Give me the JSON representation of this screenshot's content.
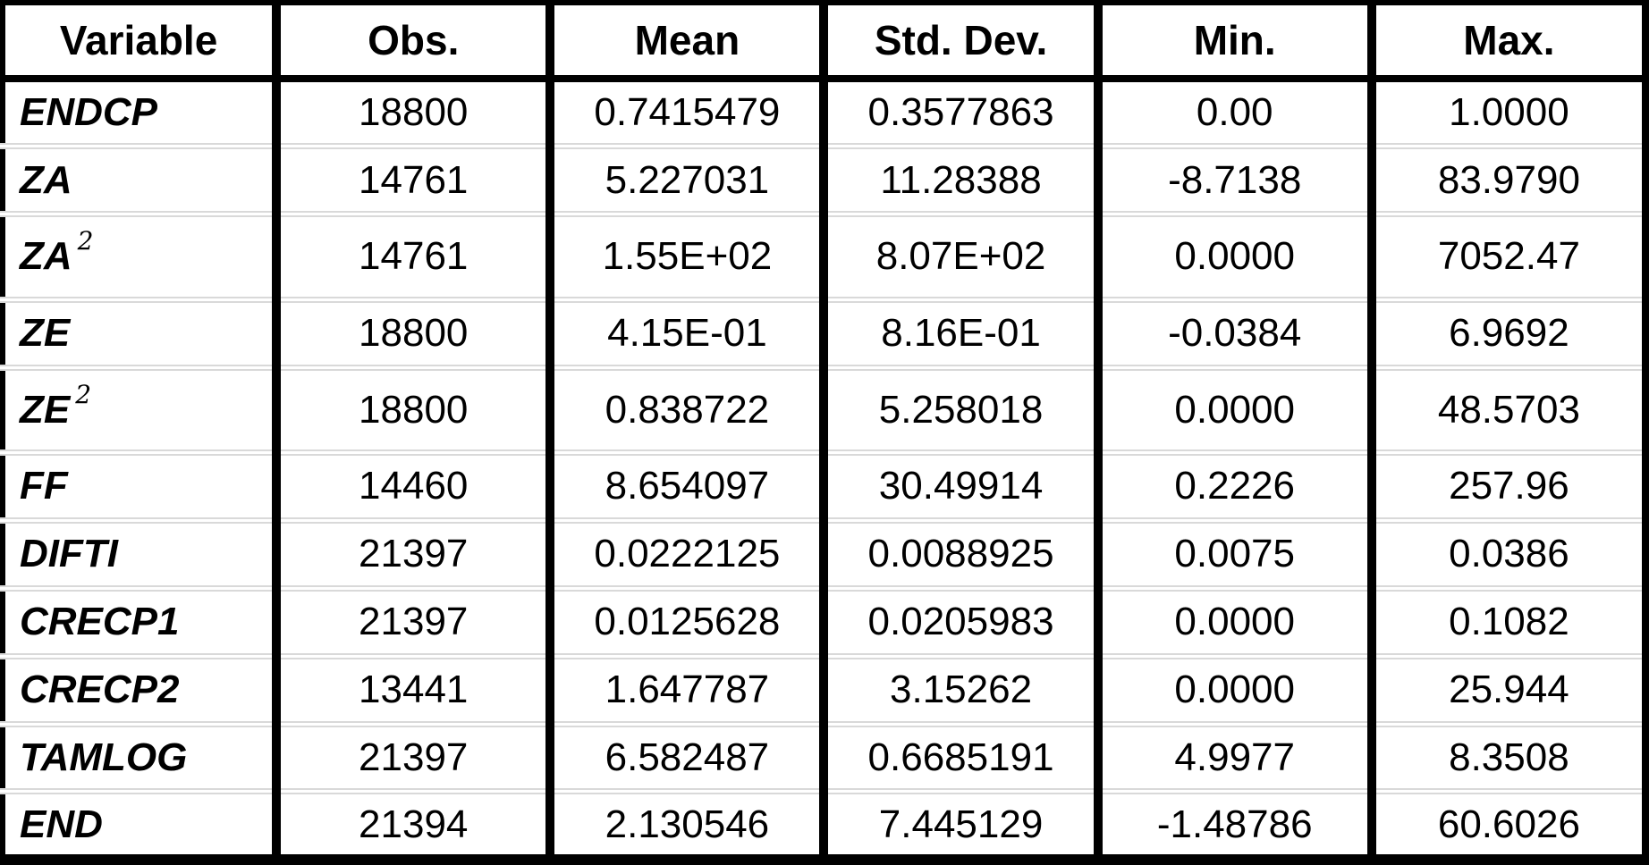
{
  "colors": {
    "outer_border": "#000000",
    "column_separator": "#000000",
    "row_divider": "#d9d9d9",
    "text": "#000000",
    "background": "#ffffff"
  },
  "chart_data": {
    "type": "table",
    "title": "",
    "columns": [
      "Variable",
      "Obs.",
      "Mean",
      "Std. Dev.",
      "Min.",
      "Max."
    ],
    "rows": [
      {
        "variable": "ENDCP",
        "sup": "",
        "obs": "18800",
        "mean": "0.7415479",
        "std": "0.3577863",
        "min": "0.00",
        "max": "1.0000"
      },
      {
        "variable": "ZA",
        "sup": "",
        "obs": "14761",
        "mean": "5.227031",
        "std": "11.28388",
        "min": "-8.7138",
        "max": "83.9790"
      },
      {
        "variable": "ZA",
        "sup": "2",
        "obs": "14761",
        "mean": "1.55E+02",
        "std": "8.07E+02",
        "min": "0.0000",
        "max": "7052.47"
      },
      {
        "variable": "ZE",
        "sup": "",
        "obs": "18800",
        "mean": "4.15E-01",
        "std": "8.16E-01",
        "min": "-0.0384",
        "max": "6.9692"
      },
      {
        "variable": "ZE",
        "sup": "2",
        "obs": "18800",
        "mean": "0.838722",
        "std": "5.258018",
        "min": "0.0000",
        "max": "48.5703"
      },
      {
        "variable": "FF",
        "sup": "",
        "obs": "14460",
        "mean": "8.654097",
        "std": "30.49914",
        "min": "0.2226",
        "max": "257.96"
      },
      {
        "variable": "DIFTI",
        "sup": "",
        "obs": "21397",
        "mean": "0.0222125",
        "std": "0.0088925",
        "min": "0.0075",
        "max": "0.0386"
      },
      {
        "variable": "CRECP1",
        "sup": "",
        "obs": "21397",
        "mean": "0.0125628",
        "std": "0.0205983",
        "min": "0.0000",
        "max": "0.1082"
      },
      {
        "variable": "CRECP2",
        "sup": "",
        "obs": "13441",
        "mean": "1.647787",
        "std": "3.15262",
        "min": "0.0000",
        "max": "25.944"
      },
      {
        "variable": "TAMLOG",
        "sup": "",
        "obs": "21397",
        "mean": "6.582487",
        "std": "0.6685191",
        "min": "4.9977",
        "max": "8.3508"
      },
      {
        "variable": "END",
        "sup": "",
        "obs": "21394",
        "mean": "2.130546",
        "std": "7.445129",
        "min": "-1.48786",
        "max": "60.6026"
      }
    ]
  }
}
